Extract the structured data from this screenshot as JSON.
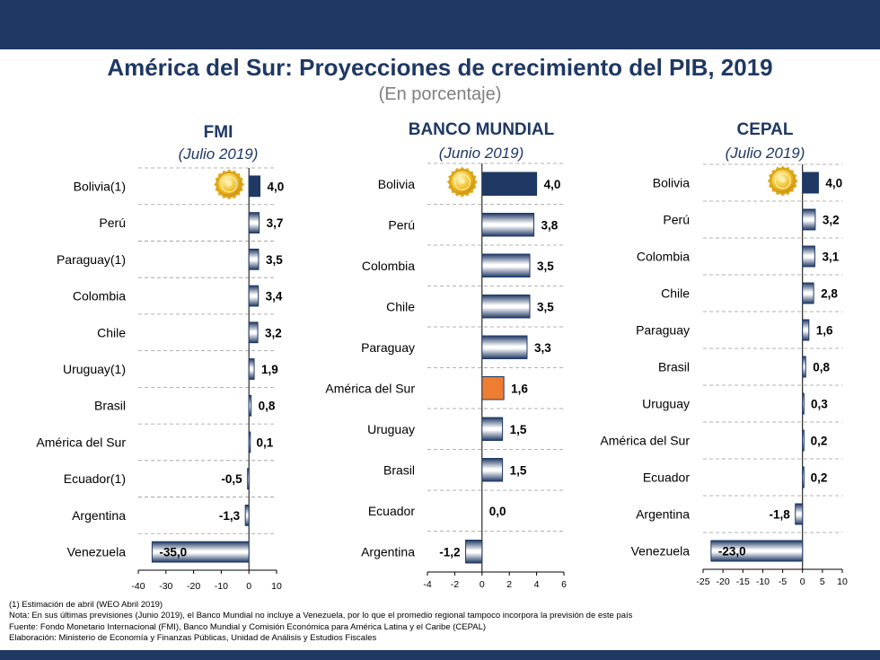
{
  "header": {
    "title": "América del Sur: Proyecciones de crecimiento del PIB, 2019",
    "subtitle": "(En porcentaje)"
  },
  "colors": {
    "navy": "#1f3864",
    "highlight": "#ed7d31",
    "bar_light": "#ffffff",
    "bar_dark": "#1f3864"
  },
  "icons": [
    "gold-medal-icon"
  ],
  "chart_data": [
    {
      "type": "bar",
      "orientation": "horizontal",
      "title": "FMI",
      "subtitle": "(Julio 2019)",
      "categories": [
        "Bolivia(1)",
        "Perú",
        "Paraguay(1)",
        "Colombia",
        "Chile",
        "Uruguay(1)",
        "Brasil",
        "América del Sur",
        "Ecuador(1)",
        "Argentina",
        "Venezuela"
      ],
      "values": [
        4.0,
        3.7,
        3.5,
        3.4,
        3.2,
        1.9,
        0.8,
        0.1,
        -0.5,
        -1.3,
        -35.0
      ],
      "value_labels": [
        "4,0",
        "3,7",
        "3,5",
        "3,4",
        "3,2",
        "1,9",
        "0,8",
        "0,1",
        "-0,5",
        "-1,3",
        "-35,0"
      ],
      "xlim": [
        -40,
        10
      ],
      "ticks": [
        -40,
        -30,
        -20,
        -10,
        0,
        10
      ],
      "tick_labels": [
        "-40",
        "-30",
        "-20",
        "-10",
        "0",
        "10"
      ],
      "highlight_index": 0,
      "highlight_style": "dark",
      "medal_index": 0
    },
    {
      "type": "bar",
      "orientation": "horizontal",
      "title": "BANCO MUNDIAL",
      "subtitle": "(Junio 2019)",
      "categories": [
        "Bolivia",
        "Perú",
        "Colombia",
        "Chile",
        "Paraguay",
        "América del Sur",
        "Uruguay",
        "Brasil",
        "Ecuador",
        "Argentina"
      ],
      "values": [
        4.0,
        3.8,
        3.5,
        3.5,
        3.3,
        1.6,
        1.5,
        1.5,
        0.0,
        -1.2
      ],
      "value_labels": [
        "4,0",
        "3,8",
        "3,5",
        "3,5",
        "3,3",
        "1,6",
        "1,5",
        "1,5",
        "0,0",
        "-1,2"
      ],
      "xlim": [
        -4,
        6
      ],
      "ticks": [
        -4,
        -2,
        0,
        2,
        4,
        6
      ],
      "tick_labels": [
        "-4",
        "-2",
        "0",
        "2",
        "4",
        "6"
      ],
      "highlight_index": 0,
      "highlight_style": "dark",
      "orange_index": 5,
      "medal_index": 0
    },
    {
      "type": "bar",
      "orientation": "horizontal",
      "title": "CEPAL",
      "subtitle": "(Julio 2019)",
      "categories": [
        "Bolivia",
        "Perú",
        "Colombia",
        "Chile",
        "Paraguay",
        "Brasil",
        "Uruguay",
        "América del Sur",
        "Ecuador",
        "Argentina",
        "Venezuela"
      ],
      "values": [
        4.0,
        3.2,
        3.1,
        2.8,
        1.6,
        0.8,
        0.3,
        0.2,
        0.2,
        -1.8,
        -23.0
      ],
      "value_labels": [
        "4,0",
        "3,2",
        "3,1",
        "2,8",
        "1,6",
        "0,8",
        "0,3",
        "0,2",
        "0,2",
        "-1,8",
        "-23,0"
      ],
      "xlim": [
        -25,
        10
      ],
      "ticks": [
        -25,
        -20,
        -15,
        -10,
        -5,
        0,
        5,
        10
      ],
      "tick_labels": [
        "-25",
        "-20",
        "-15",
        "-10",
        "-5",
        "0",
        "5",
        "10"
      ],
      "highlight_index": 0,
      "highlight_style": "dark",
      "medal_index": 0
    }
  ],
  "notes": [
    "(1) Estimación de abril (WEO Abril 2019)",
    "Nota: En sus últimas previsiones (Junio 2019), el Banco Mundial no incluye a Venezuela, por lo que el promedio regional tampoco incorpora la previsión de este país",
    "Fuente: Fondo Monetario Internacional (FMI), Banco Mundial y Comisión Económica para América Latina y el Caribe (CEPAL)",
    "Elaboración: Ministerio de Economía y Finanzas Públicas, Unidad de Análisis y Estudios Fiscales"
  ]
}
